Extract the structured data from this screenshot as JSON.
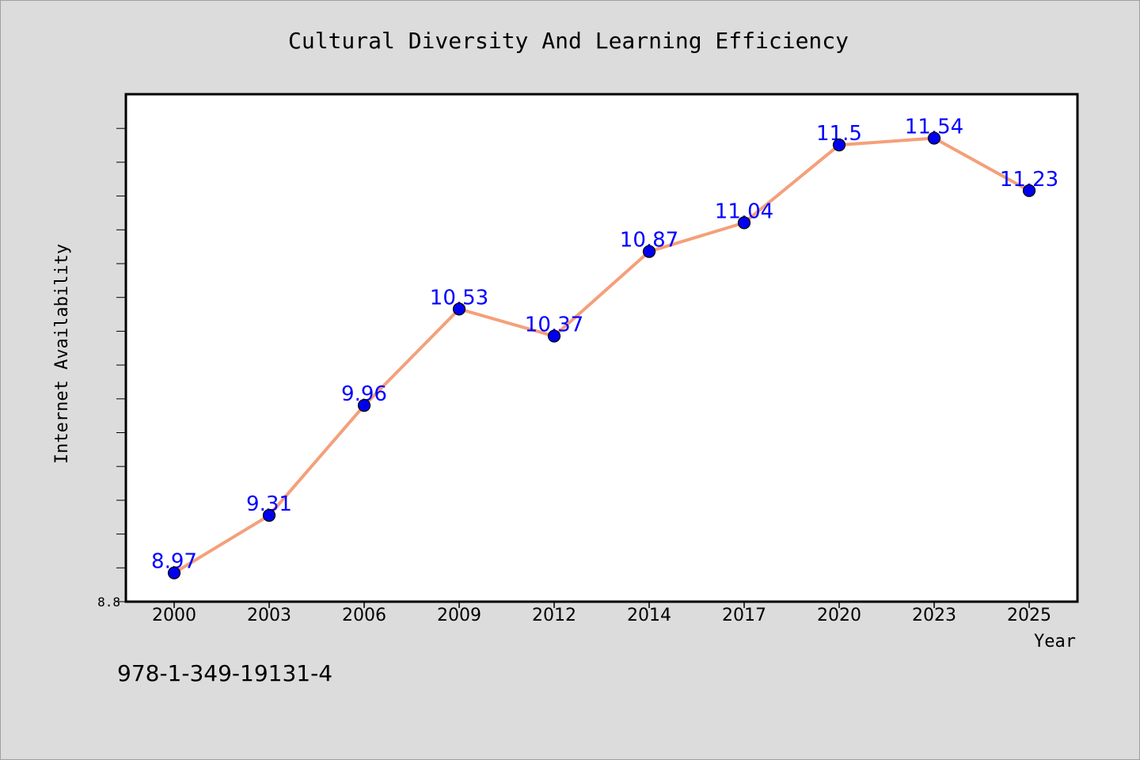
{
  "chart_data": {
    "type": "line",
    "title": "Cultural Diversity And Learning Efficiency",
    "xlabel": "Year",
    "ylabel": "Internet Availability",
    "categories": [
      "2000",
      "2003",
      "2006",
      "2009",
      "2012",
      "2014",
      "2017",
      "2020",
      "2023",
      "2025"
    ],
    "series": [
      {
        "values": [
          8.97,
          9.31,
          9.96,
          10.53,
          10.37,
          10.87,
          11.04,
          11.5,
          11.54,
          11.23
        ],
        "data_labels": [
          "8.97",
          "9.31",
          "9.96",
          "10.53",
          "10.37",
          "10.87",
          "11.04",
          "11.5",
          "11.54",
          "11.23"
        ],
        "line_color": "#f4a07a",
        "marker_color": "#0000ee",
        "label_color": "#0000ff"
      }
    ],
    "ylim": [
      8.8,
      11.8
    ],
    "ytick_label": "8.8",
    "grid": false,
    "legend": "none"
  },
  "footer": {
    "isbn": "978-1-349-19131-4"
  }
}
